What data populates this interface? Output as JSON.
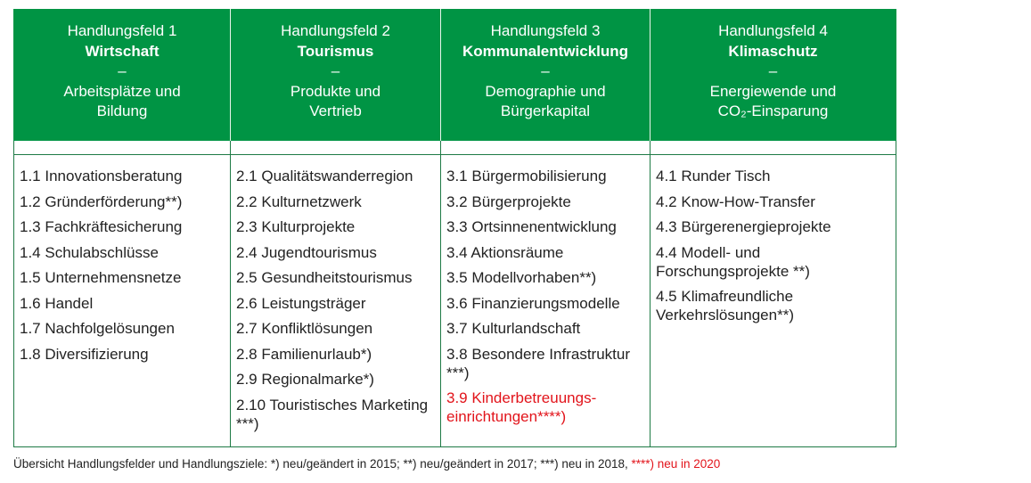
{
  "columns": [
    {
      "line1": "Handlungsfeld 1",
      "title": "Wirtschaft",
      "dash": "–",
      "sub1": "Arbeitsplätze und",
      "sub2": "Bildung",
      "items": [
        {
          "text": "1.1 Innovationsberatung"
        },
        {
          "text": "1.2 Gründerförderung**)"
        },
        {
          "text": "1.3 Fachkräftesicherung"
        },
        {
          "text": "1.4 Schulabschlüsse"
        },
        {
          "text": "1.5 Unternehmensnetze"
        },
        {
          "text": "1.6 Handel"
        },
        {
          "text": "1.7 Nachfolgelösungen"
        },
        {
          "text": "1.8 Diversifizierung"
        }
      ]
    },
    {
      "line1": "Handlungsfeld 2",
      "title": "Tourismus",
      "dash": "–",
      "sub1": "Produkte und",
      "sub2": "Vertrieb",
      "items": [
        {
          "text": "2.1 Qualitätswanderregion"
        },
        {
          "text": "2.2 Kulturnetzwerk"
        },
        {
          "text": "2.3 Kulturprojekte"
        },
        {
          "text": "2.4 Jugendtourismus"
        },
        {
          "text": "2.5 Gesundheitstourismus"
        },
        {
          "text": "2.6 Leistungsträger"
        },
        {
          "text": "2.7 Konfliktlösungen"
        },
        {
          "text": "2.8 Familienurlaub*)"
        },
        {
          "text": "2.9 Regionalmarke*)"
        },
        {
          "text": "2.10 Touristisches Marketing ***)"
        }
      ]
    },
    {
      "line1": "Handlungsfeld 3",
      "title": "Kommunalentwicklung",
      "dash": "–",
      "sub1": "Demographie und",
      "sub2": "Bürgerkapital",
      "items": [
        {
          "text": "3.1 Bürgermobilisierung"
        },
        {
          "text": "3.2 Bürgerprojekte"
        },
        {
          "text": "3.3 Ortsinnenentwicklung"
        },
        {
          "text": "3.4 Aktionsräume"
        },
        {
          "text": "3.5 Modellvorhaben**)"
        },
        {
          "text": "3.6 Finanzierungsmodelle"
        },
        {
          "text": "3.7 Kulturlandschaft"
        },
        {
          "text": "3.8 Besondere Infrastruktur ***)"
        },
        {
          "text": "3.9 Kinderbetreuungs-einrichtungen****)",
          "new": true
        }
      ]
    },
    {
      "line1": "Handlungsfeld 4",
      "title": "Klimaschutz",
      "dash": "–",
      "sub1": "Energiewende und",
      "sub2": "CO₂-Einsparung",
      "items": [
        {
          "text": "4.1 Runder Tisch"
        },
        {
          "text": "4.2 Know-How-Transfer"
        },
        {
          "text": "4.3 Bürgerenergieprojekte"
        },
        {
          "text": "4.4 Modell- und Forschungsprojekte **)"
        },
        {
          "text": "4.5 Klimafreundliche Verkehrslösungen**)"
        }
      ]
    }
  ],
  "footer": {
    "text": "Übersicht Handlungsfelder  und Handlungsziele:  *) neu/geändert  in 2015;  **) neu/geändert  in 2017;  ***) neu in 2018, ",
    "red": "****) neu in 2020"
  },
  "colors": {
    "header_green": "#009444",
    "border": "#1e7a45",
    "new_red": "#e2141b"
  }
}
